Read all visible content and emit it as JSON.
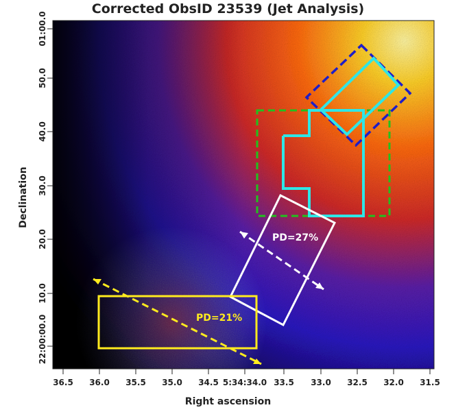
{
  "figure": {
    "title": "Corrected ObsID 23539 (Jet Analysis)",
    "xlabel": "Right ascension",
    "ylabel": "Declination"
  },
  "axes": {
    "ra_ticks": [
      "36.5",
      "36.0",
      "35.5",
      "35.0",
      "34.5",
      "5:34:34.0",
      "33.5",
      "33.0",
      "32.5",
      "32.0",
      "31.5"
    ],
    "dec_ticks": [
      "01:00.0",
      "50.0",
      "40.0",
      "30.0",
      "20.0",
      "10.0",
      "22:00:00.0"
    ]
  },
  "regions": {
    "blue_box": {
      "color": "#1e1ec8",
      "style": "dashed"
    },
    "green_box": {
      "color": "#22c01e",
      "style": "dashed"
    },
    "cyan_region": {
      "color": "#2ee6e6",
      "style": "solid"
    },
    "white_box": {
      "color": "#ffffff",
      "style": "solid",
      "label": "PD=27%"
    },
    "yellow_box": {
      "color": "#ffeb1e",
      "style": "solid",
      "label": "PD=21%"
    }
  },
  "image": {
    "colormap": "heat",
    "colors": [
      "#000000",
      "#1a0d8a",
      "#3a22e0",
      "#c0283a",
      "#ff6a10",
      "#ffd028",
      "#fff5a0"
    ]
  }
}
